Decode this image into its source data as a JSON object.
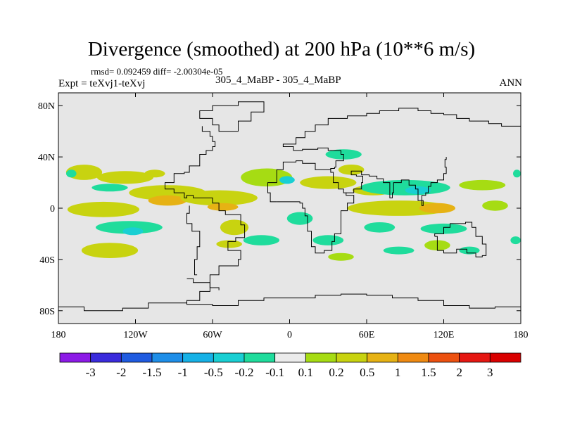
{
  "chart_data": {
    "type": "heatmap",
    "title": "Divergence (smoothed) at 200 hPa (10**6 m/s)",
    "rmsd_diff": "rmsd= 0.092459 diff= -2.00304e-05",
    "expt": "Expt = teXvj1-teXvj",
    "cases": "305_4_MaBP - 305_4_MaBP",
    "season": "ANN",
    "x_ticks": [
      {
        "label": "180",
        "lon": -180
      },
      {
        "label": "120W",
        "lon": -120
      },
      {
        "label": "60W",
        "lon": -60
      },
      {
        "label": "0",
        "lon": 0
      },
      {
        "label": "60E",
        "lon": 60
      },
      {
        "label": "120E",
        "lon": 120
      },
      {
        "label": "180",
        "lon": 180
      }
    ],
    "y_ticks": [
      {
        "label": "80N",
        "lat": 80
      },
      {
        "label": "40N",
        "lat": 40
      },
      {
        "label": "0",
        "lat": 0
      },
      {
        "label": "40S",
        "lat": -40
      },
      {
        "label": "80S",
        "lat": -80
      }
    ],
    "xlim": [
      -180,
      180
    ],
    "ylim": [
      -90,
      90
    ],
    "colorbar": {
      "levels": [
        "-3",
        "-2",
        "-1.5",
        "-1",
        "-0.5",
        "-0.2",
        "-0.1",
        "0.1",
        "0.2",
        "0.5",
        "1",
        "1.5",
        "2",
        "3"
      ],
      "colors": [
        "#8c1ae6",
        "#3a2bdc",
        "#1f5be0",
        "#1e8ee8",
        "#16b1e6",
        "#19cfd3",
        "#1fdc9c",
        "#ebebeb",
        "#a6dc13",
        "#c8d310",
        "#e6b214",
        "#ef8a12",
        "#ec5110",
        "#e51712",
        "#d90000"
      ]
    },
    "blobs": [
      {
        "lon": -160,
        "lat": 28,
        "rlon": 14,
        "rlat": 6,
        "value": 0.3
      },
      {
        "lon": -128,
        "lat": 24,
        "rlon": 22,
        "rlat": 5,
        "value": 0.25
      },
      {
        "lon": -105,
        "lat": 27,
        "rlon": 8,
        "rlat": 3,
        "value": 0.35
      },
      {
        "lon": -140,
        "lat": 16,
        "rlon": 14,
        "rlat": 3,
        "value": -0.15
      },
      {
        "lon": -95,
        "lat": 12,
        "rlon": 30,
        "rlat": 6,
        "value": 0.3
      },
      {
        "lon": -95,
        "lat": 6,
        "rlon": 15,
        "rlat": 4,
        "value": 0.6
      },
      {
        "lon": -145,
        "lat": -1,
        "rlon": 28,
        "rlat": 6,
        "value": 0.25
      },
      {
        "lon": -55,
        "lat": 8,
        "rlon": 30,
        "rlat": 6,
        "value": 0.25
      },
      {
        "lon": -52,
        "lat": 1,
        "rlon": 12,
        "rlat": 3,
        "value": 0.6
      },
      {
        "lon": -125,
        "lat": -15,
        "rlon": 26,
        "rlat": 5,
        "value": -0.15
      },
      {
        "lon": -122,
        "lat": -18,
        "rlon": 8,
        "rlat": 3,
        "value": -0.3
      },
      {
        "lon": -140,
        "lat": -33,
        "rlon": 22,
        "rlat": 6,
        "value": 0.25
      },
      {
        "lon": -43,
        "lat": -15,
        "rlon": 11,
        "rlat": 6,
        "value": 0.35
      },
      {
        "lon": -22,
        "lat": -25,
        "rlon": 14,
        "rlat": 4,
        "value": -0.15
      },
      {
        "lon": -47,
        "lat": -28,
        "rlon": 10,
        "rlat": 3,
        "value": 0.3
      },
      {
        "lon": -18,
        "lat": 24,
        "rlon": 20,
        "rlat": 7,
        "value": 0.2
      },
      {
        "lon": -2,
        "lat": 22,
        "rlon": 6,
        "rlat": 3,
        "value": -0.3
      },
      {
        "lon": 8,
        "lat": -8,
        "rlon": 10,
        "rlat": 5,
        "value": -0.15
      },
      {
        "lon": 42,
        "lat": 42,
        "rlon": 14,
        "rlat": 4,
        "value": -0.15
      },
      {
        "lon": 30,
        "lat": 20,
        "rlon": 22,
        "rlat": 5,
        "value": 0.25
      },
      {
        "lon": 48,
        "lat": 30,
        "rlon": 10,
        "rlat": 4,
        "value": 0.3
      },
      {
        "lon": 65,
        "lat": 14,
        "rlon": 16,
        "rlat": 4,
        "value": 0.25
      },
      {
        "lon": 90,
        "lat": 16,
        "rlon": 35,
        "rlat": 6,
        "value": -0.15
      },
      {
        "lon": 100,
        "lat": 14,
        "rlon": 10,
        "rlat": 3,
        "value": -0.3
      },
      {
        "lon": 150,
        "lat": 18,
        "rlon": 18,
        "rlat": 4,
        "value": 0.2
      },
      {
        "lon": 85,
        "lat": 0,
        "rlon": 40,
        "rlat": 6,
        "value": 0.25
      },
      {
        "lon": 115,
        "lat": 0,
        "rlon": 14,
        "rlat": 4,
        "value": 0.55
      },
      {
        "lon": 160,
        "lat": 2,
        "rlon": 10,
        "rlat": 4,
        "value": 0.2
      },
      {
        "lon": 70,
        "lat": -15,
        "rlon": 12,
        "rlat": 4,
        "value": -0.15
      },
      {
        "lon": 120,
        "lat": -16,
        "rlon": 18,
        "rlat": 4,
        "value": -0.15
      },
      {
        "lon": 30,
        "lat": -25,
        "rlon": 12,
        "rlat": 4,
        "value": -0.15
      },
      {
        "lon": 40,
        "lat": -38,
        "rlon": 10,
        "rlat": 3,
        "value": 0.2
      },
      {
        "lon": 85,
        "lat": -33,
        "rlon": 12,
        "rlat": 3,
        "value": -0.15
      },
      {
        "lon": 115,
        "lat": -29,
        "rlon": 10,
        "rlat": 4,
        "value": 0.2
      },
      {
        "lon": 140,
        "lat": -33,
        "rlon": 8,
        "rlat": 3,
        "value": -0.15
      },
      {
        "lon": -170,
        "lat": 27,
        "rlon": 4,
        "rlat": 3,
        "value": -0.15
      },
      {
        "lon": 177,
        "lat": 27,
        "rlon": 3,
        "rlat": 3,
        "value": -0.15
      },
      {
        "lon": 176,
        "lat": -25,
        "rlon": 4,
        "rlat": 3,
        "value": -0.15
      }
    ],
    "coastlines": [
      [
        [
          -180,
          -77
        ],
        [
          -160,
          -80
        ],
        [
          -130,
          -78
        ],
        [
          -110,
          -74
        ],
        [
          -80,
          -72
        ],
        [
          -70,
          -65
        ],
        [
          -62,
          -58
        ],
        [
          -62,
          -52
        ],
        [
          -55,
          -45
        ],
        [
          -40,
          -40
        ],
        [
          -38,
          -33
        ],
        [
          -48,
          -26
        ],
        [
          -42,
          -23
        ],
        [
          -35,
          -13
        ],
        [
          -38,
          -5
        ],
        [
          -50,
          -2
        ],
        [
          -55,
          4
        ],
        [
          -60,
          8
        ],
        [
          -75,
          10
        ],
        [
          -80,
          8
        ],
        [
          -82,
          12
        ],
        [
          -90,
          15
        ],
        [
          -97,
          20
        ],
        [
          -90,
          27
        ],
        [
          -82,
          28
        ],
        [
          -78,
          33
        ],
        [
          -70,
          42
        ],
        [
          -65,
          45
        ],
        [
          -60,
          48
        ],
        [
          -58,
          52
        ],
        [
          -60,
          56
        ],
        [
          -62,
          60
        ],
        [
          -68,
          64
        ]
      ],
      [
        [
          -72,
          -52
        ],
        [
          -74,
          -40
        ],
        [
          -72,
          -30
        ],
        [
          -70,
          -18
        ],
        [
          -76,
          -12
        ],
        [
          -80,
          -4
        ],
        [
          -78,
          2
        ]
      ],
      [
        [
          -10,
          5
        ],
        [
          -15,
          12
        ],
        [
          -17,
          20
        ],
        [
          -10,
          30
        ],
        [
          -5,
          36
        ],
        [
          5,
          37
        ],
        [
          10,
          35
        ],
        [
          20,
          30
        ],
        [
          32,
          31
        ],
        [
          35,
          32
        ],
        [
          36,
          37
        ],
        [
          42,
          42
        ],
        [
          40,
          45
        ],
        [
          30,
          47
        ],
        [
          22,
          46
        ],
        [
          10,
          45
        ],
        [
          3,
          48
        ],
        [
          -3,
          48
        ],
        [
          -5,
          50
        ],
        [
          5,
          55
        ],
        [
          12,
          60
        ],
        [
          20,
          65
        ],
        [
          30,
          70
        ],
        [
          45,
          72
        ],
        [
          60,
          74
        ],
        [
          70,
          76
        ],
        [
          85,
          78
        ],
        [
          100,
          76
        ],
        [
          110,
          74
        ],
        [
          120,
          73
        ],
        [
          130,
          70
        ],
        [
          140,
          68
        ],
        [
          155,
          66
        ],
        [
          165,
          64
        ],
        [
          180,
          66
        ]
      ],
      [
        [
          -10,
          5
        ],
        [
          0,
          5
        ],
        [
          8,
          4
        ],
        [
          10,
          0
        ],
        [
          12,
          -6
        ],
        [
          14,
          -18
        ],
        [
          17,
          -30
        ],
        [
          20,
          -35
        ],
        [
          27,
          -33
        ],
        [
          33,
          -26
        ],
        [
          35,
          -20
        ],
        [
          40,
          -12
        ],
        [
          40,
          -2
        ],
        [
          45,
          4
        ],
        [
          50,
          10
        ],
        [
          44,
          12
        ],
        [
          42,
          15
        ],
        [
          38,
          20
        ],
        [
          34,
          28
        ],
        [
          32,
          31
        ]
      ],
      [
        [
          44,
          12
        ],
        [
          50,
          15
        ],
        [
          56,
          20
        ],
        [
          57,
          25
        ],
        [
          52,
          26
        ],
        [
          48,
          29
        ],
        [
          56,
          26
        ],
        [
          62,
          25
        ],
        [
          68,
          23
        ],
        [
          73,
          20
        ],
        [
          78,
          8
        ],
        [
          80,
          12
        ],
        [
          81,
          20
        ],
        [
          87,
          22
        ],
        [
          90,
          22
        ],
        [
          93,
          18
        ],
        [
          98,
          15
        ],
        [
          100,
          6
        ],
        [
          104,
          2
        ],
        [
          103,
          10
        ],
        [
          106,
          12
        ],
        [
          108,
          17
        ],
        [
          110,
          20
        ],
        [
          115,
          22
        ],
        [
          120,
          27
        ],
        [
          122,
          32
        ],
        [
          121,
          38
        ],
        [
          122,
          40
        ]
      ],
      [
        [
          113,
          -22
        ],
        [
          115,
          -33
        ],
        [
          120,
          -35
        ],
        [
          130,
          -32
        ],
        [
          138,
          -35
        ],
        [
          145,
          -38
        ],
        [
          150,
          -37
        ],
        [
          153,
          -28
        ],
        [
          150,
          -22
        ],
        [
          145,
          -15
        ],
        [
          142,
          -11
        ],
        [
          137,
          -12
        ],
        [
          130,
          -12
        ],
        [
          125,
          -15
        ],
        [
          120,
          -20
        ],
        [
          113,
          -22
        ]
      ],
      [
        [
          -40,
          60
        ],
        [
          -45,
          60
        ],
        [
          -55,
          65
        ],
        [
          -60,
          70
        ],
        [
          -70,
          76
        ],
        [
          -60,
          80
        ],
        [
          -40,
          83
        ],
        [
          -20,
          82
        ],
        [
          -20,
          75
        ],
        [
          -30,
          68
        ],
        [
          -40,
          60
        ]
      ],
      [
        [
          -80,
          -55
        ],
        [
          -75,
          -58
        ],
        [
          -62,
          -62
        ],
        [
          -55,
          -64
        ]
      ],
      [
        [
          180,
          -77
        ],
        [
          160,
          -78
        ],
        [
          140,
          -76
        ],
        [
          120,
          -72
        ],
        [
          100,
          -70
        ],
        [
          80,
          -68
        ],
        [
          60,
          -67
        ],
        [
          40,
          -68
        ],
        [
          20,
          -70
        ],
        [
          0,
          -70
        ],
        [
          -20,
          -72
        ],
        [
          -40,
          -76
        ],
        [
          -60,
          -75
        ],
        [
          -80,
          -74
        ]
      ]
    ]
  }
}
